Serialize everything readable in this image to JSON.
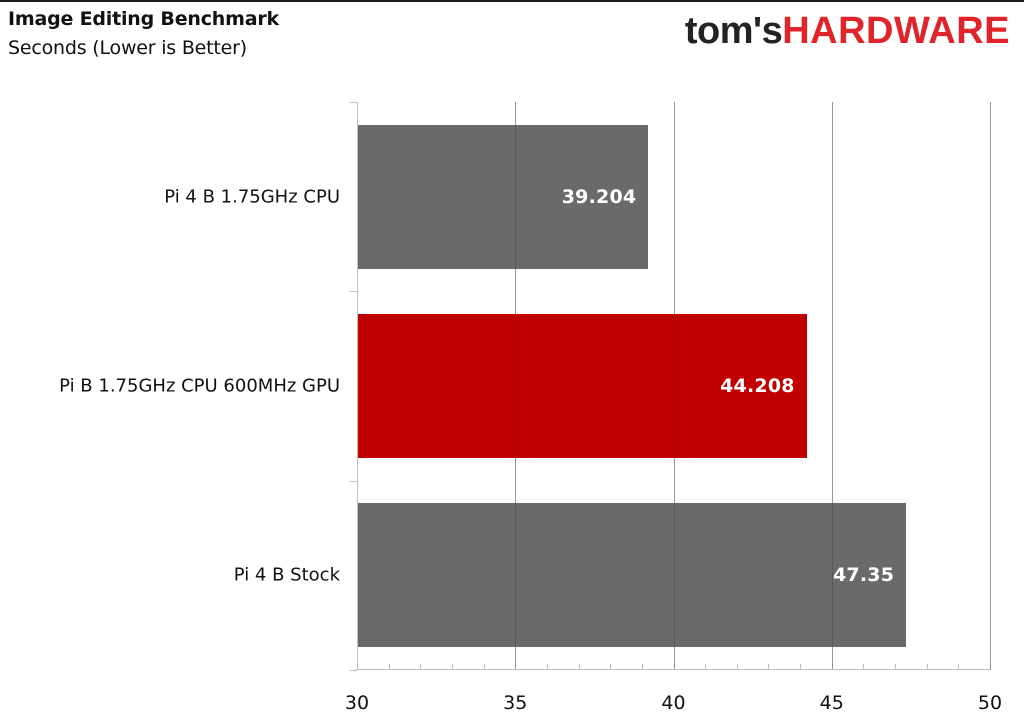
{
  "header": {
    "title": "Image Editing Benchmark",
    "subtitle": "Seconds (Lower is Better)",
    "logo_dark": "tom's",
    "logo_red": "HARDWARE"
  },
  "colors": {
    "bar_default": "#6b696a",
    "bar_highlight": "#c00000",
    "logo_red": "#e0242b"
  },
  "chart_data": {
    "type": "bar",
    "orientation": "horizontal",
    "title": "Image Editing Benchmark",
    "subtitle": "Seconds (Lower is Better)",
    "xlabel": "",
    "ylabel": "",
    "categories": [
      "Pi 4 B 1.75GHz CPU",
      "Pi B 1.75GHz CPU 600MHz GPU",
      "Pi 4 B Stock"
    ],
    "values": [
      39.204,
      44.208,
      47.35
    ],
    "value_labels": [
      "39.204",
      "44.208",
      "47.35"
    ],
    "highlight_index": 1,
    "xlim": [
      30,
      50
    ],
    "x_ticks": [
      "30",
      "35",
      "40",
      "45",
      "50"
    ],
    "minor_tick_step": 1,
    "grid": true,
    "legend": "none"
  }
}
